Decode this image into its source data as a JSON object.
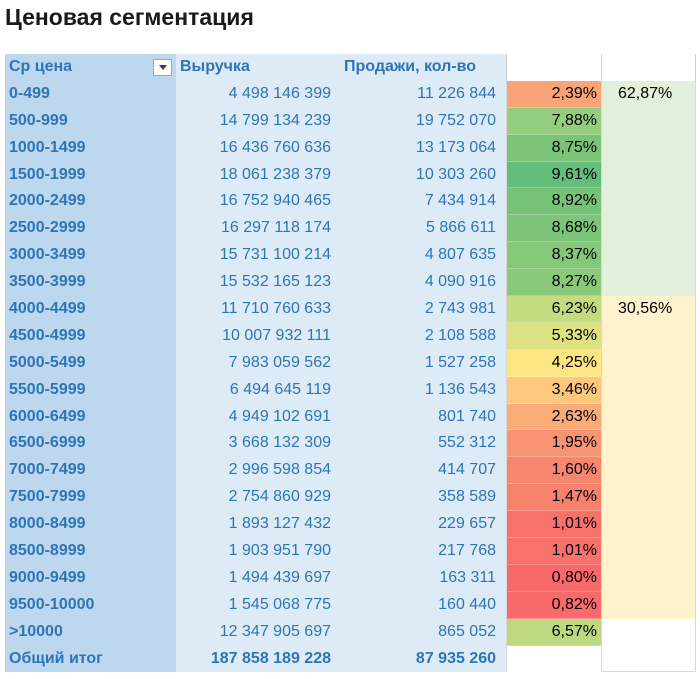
{
  "title": "Ценовая сегментация",
  "headers": {
    "price": "Ср цена",
    "revenue": "Выручка",
    "sales": "Продажи, кол-во"
  },
  "rows": [
    {
      "range": "0-499",
      "revenue": "4 498 146 399",
      "sales": "11 226 844",
      "share": "2,39%",
      "color": "#f8a477"
    },
    {
      "range": "500-999",
      "revenue": "14 799 134 239",
      "sales": "19 752 070",
      "share": "7,88%",
      "color": "#94cd7e"
    },
    {
      "range": "1000-1499",
      "revenue": "16 436 760 636",
      "sales": "13 173 064",
      "share": "8,75%",
      "color": "#7bc477"
    },
    {
      "range": "1500-1999",
      "revenue": "18 061 238 379",
      "sales": "10 303 260",
      "share": "9,61%",
      "color": "#63be7b"
    },
    {
      "range": "2000-2499",
      "revenue": "16 752 940 465",
      "sales": "7 434 914",
      "share": "8,92%",
      "color": "#76c378"
    },
    {
      "range": "2500-2999",
      "revenue": "16 297 118 174",
      "sales": "5 866 611",
      "share": "8,68%",
      "color": "#7dc578"
    },
    {
      "range": "3000-3499",
      "revenue": "15 731 100 214",
      "sales": "4 807 635",
      "share": "8,37%",
      "color": "#86c87a"
    },
    {
      "range": "3500-3999",
      "revenue": "15 532 165 123",
      "sales": "4 090 916",
      "share": "8,27%",
      "color": "#89c97a"
    },
    {
      "range": "4000-4499",
      "revenue": "11 710 760 633",
      "sales": "2 743 981",
      "share": "6,23%",
      "color": "#c4dc80"
    },
    {
      "range": "4500-4999",
      "revenue": "10 007 932 111",
      "sales": "2 108 588",
      "share": "5,33%",
      "color": "#dee283"
    },
    {
      "range": "5000-5499",
      "revenue": "7 983 059 562",
      "sales": "1 527 258",
      "share": "4,25%",
      "color": "#fee582"
    },
    {
      "range": "5500-5999",
      "revenue": "6 494 645 119",
      "sales": "1 136 543",
      "share": "3,46%",
      "color": "#fdc87d"
    },
    {
      "range": "6000-6499",
      "revenue": "4 949 102 691",
      "sales": "801 740",
      "share": "2,63%",
      "color": "#fbab78"
    },
    {
      "range": "6500-6999",
      "revenue": "3 668 132 309",
      "sales": "552 312",
      "share": "1,95%",
      "color": "#f99373"
    },
    {
      "range": "7000-7499",
      "revenue": "2 996 598 854",
      "sales": "414 707",
      "share": "1,60%",
      "color": "#f8866f"
    },
    {
      "range": "7500-7999",
      "revenue": "2 754 860 929",
      "sales": "358 589",
      "share": "1,47%",
      "color": "#f8816e"
    },
    {
      "range": "8000-8499",
      "revenue": "1 893 127 432",
      "sales": "229 657",
      "share": "1,01%",
      "color": "#f8716b"
    },
    {
      "range": "8500-8999",
      "revenue": "1 903 951 790",
      "sales": "217 768",
      "share": "1,01%",
      "color": "#f8716b"
    },
    {
      "range": "9000-9499",
      "revenue": "1 494 439 697",
      "sales": "163 311",
      "share": "0,80%",
      "color": "#f8696b"
    },
    {
      "range": "9500-10000",
      "revenue": "1 545 068 775",
      "sales": "160 440",
      "share": "0,82%",
      "color": "#f86a6b"
    },
    {
      "range": ">10000",
      "revenue": "12 347 905 697",
      "sales": "865 052",
      "share": "6,57%",
      "color": "#bcd981"
    }
  ],
  "total": {
    "label": "Общий итог",
    "revenue": "187 858 189 228",
    "sales": "87 935 260"
  },
  "groups": [
    {
      "value": "62,87%",
      "color": "#e2efda"
    },
    {
      "value": "30,56%",
      "color": "#fff2cc"
    }
  ],
  "colors": {
    "header_text": "#2e75b6",
    "label_bg": "#bdd7ee",
    "value_bg": "#ddebf7"
  }
}
